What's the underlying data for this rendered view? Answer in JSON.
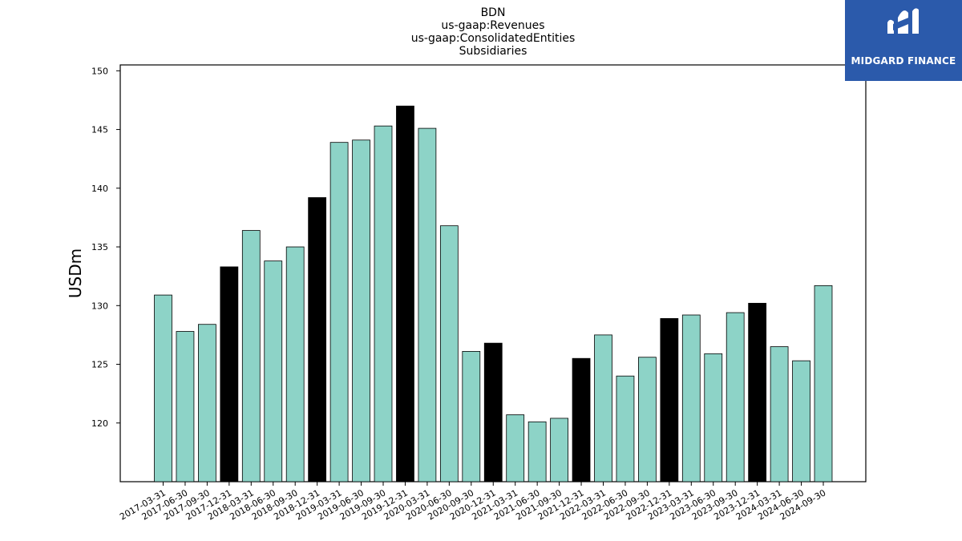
{
  "header": {
    "title_lines": [
      "BDN",
      "us-gaap:Revenues",
      "us-gaap:ConsolidatedEntities",
      "Subsidiaries"
    ]
  },
  "logo": {
    "text": "MIDGARD FINANCE",
    "background": "#2b5aab"
  },
  "colors": {
    "bar_default": "#8dd3c7",
    "bar_highlight": "#000000",
    "bar_edge": "#000000"
  },
  "chart_data": {
    "type": "bar",
    "ylabel": "USDm",
    "xlabel": "",
    "ylim": [
      115,
      150.5
    ],
    "yticks": [
      120,
      125,
      130,
      135,
      140,
      145,
      150
    ],
    "categories": [
      "2017-03-31",
      "2017-06-30",
      "2017-09-30",
      "2017-12-31",
      "2018-03-31",
      "2018-06-30",
      "2018-09-30",
      "2018-12-31",
      "2019-03-31",
      "2019-06-30",
      "2019-09-30",
      "2019-12-31",
      "2020-03-31",
      "2020-06-30",
      "2020-09-30",
      "2020-12-31",
      "2021-03-31",
      "2021-06-30",
      "2021-09-30",
      "2021-12-31",
      "2022-03-31",
      "2022-06-30",
      "2022-09-30",
      "2022-12-31",
      "2023-03-31",
      "2023-06-30",
      "2023-09-30",
      "2023-12-31",
      "2024-03-31",
      "2024-06-30",
      "2024-09-30"
    ],
    "values": [
      130.9,
      127.8,
      128.4,
      133.3,
      136.4,
      133.8,
      135.0,
      139.2,
      143.9,
      144.1,
      145.3,
      147.0,
      145.1,
      136.8,
      126.1,
      126.8,
      120.7,
      120.1,
      120.4,
      125.5,
      127.5,
      124.0,
      125.6,
      128.9,
      129.2,
      125.9,
      129.4,
      130.2,
      126.5,
      125.3,
      131.7
    ],
    "highlight_categories": [
      "2017-12-31",
      "2018-12-31",
      "2019-12-31",
      "2020-12-31",
      "2021-12-31",
      "2022-12-31",
      "2023-12-31"
    ],
    "grid": false,
    "legend": "none"
  }
}
